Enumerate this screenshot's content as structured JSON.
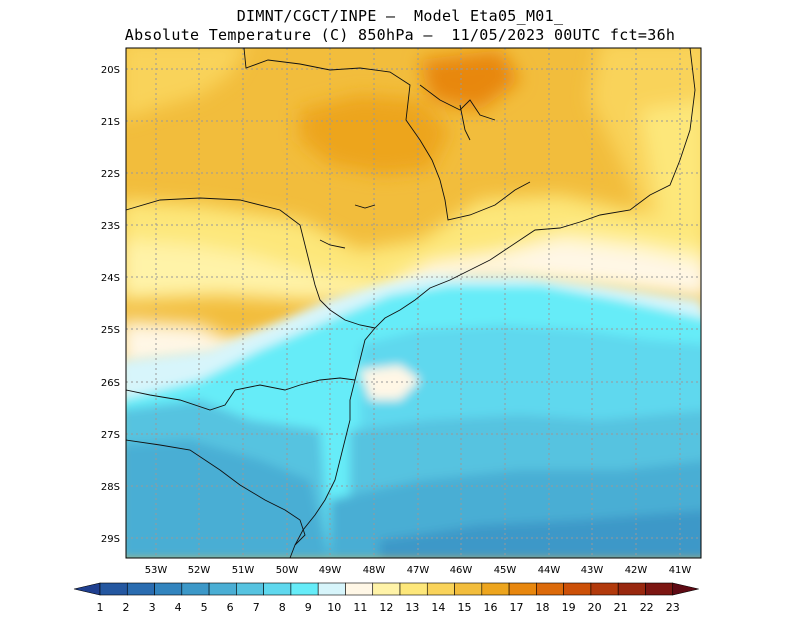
{
  "title": {
    "line1": "DIMNT/CGCT/INPE –  Model Eta05_M01_",
    "line2": "Absolute Temperature (C) 850hPa –  11/05/2023 00UTC fct=36h"
  },
  "map": {
    "lat_labels": [
      "20S",
      "21S",
      "22S",
      "23S",
      "24S",
      "25S",
      "26S",
      "27S",
      "28S",
      "29S"
    ],
    "lon_labels": [
      "53W",
      "52W",
      "51W",
      "50W",
      "49W",
      "48W",
      "47W",
      "46W",
      "45W",
      "44W",
      "43W",
      "42W",
      "41W"
    ]
  },
  "colorbar": {
    "labels": [
      "1",
      "2",
      "3",
      "4",
      "5",
      "6",
      "7",
      "8",
      "9",
      "10",
      "11",
      "12",
      "13",
      "14",
      "15",
      "16",
      "17",
      "18",
      "19",
      "20",
      "21",
      "22",
      "23"
    ],
    "colors": [
      "#1f3f8f",
      "#2457a0",
      "#2a6cb0",
      "#3284be",
      "#3c98c8",
      "#4aaed4",
      "#56c3e0",
      "#5fd8ee",
      "#66ecf8",
      "#d7f5fb",
      "#fff7e6",
      "#fff3a8",
      "#fde77a",
      "#f9d35a",
      "#f2bd3c",
      "#eda51e",
      "#e8870e",
      "#dc6a0a",
      "#cc5008",
      "#b23a0c",
      "#99280f",
      "#7c1612",
      "#5e0a14"
    ]
  },
  "chart_data": {
    "type": "heatmap",
    "variable": "Absolute Temperature (C) 850hPa",
    "lat_range": [
      -29.4,
      -19.7
    ],
    "lon_range": [
      -53.8,
      -40.5
    ],
    "color_levels": [
      1,
      2,
      3,
      4,
      5,
      6,
      7,
      8,
      9,
      10,
      11,
      12,
      13,
      14,
      15,
      16,
      17,
      18,
      19,
      20,
      21,
      22,
      23
    ]
  }
}
